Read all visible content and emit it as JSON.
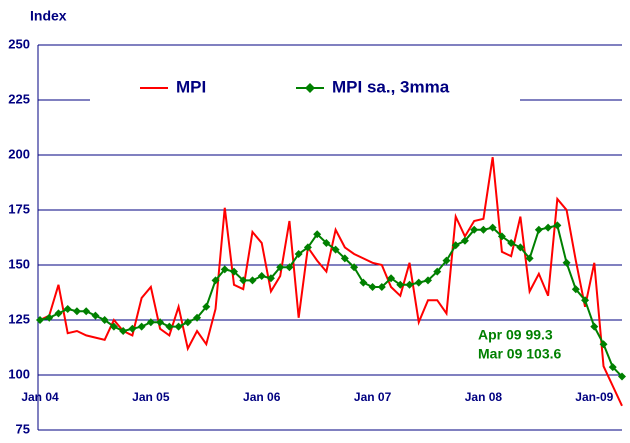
{
  "chart_data": {
    "type": "line",
    "y_label": "Index",
    "categories": [
      "Jan 04",
      null,
      null,
      null,
      null,
      null,
      null,
      null,
      null,
      null,
      null,
      null,
      "Jan 05",
      null,
      null,
      null,
      null,
      null,
      null,
      null,
      null,
      null,
      null,
      null,
      "Jan 06",
      null,
      null,
      null,
      null,
      null,
      null,
      null,
      null,
      null,
      null,
      null,
      "Jan 07",
      null,
      null,
      null,
      null,
      null,
      null,
      null,
      null,
      null,
      null,
      null,
      "Jan 08",
      null,
      null,
      null,
      null,
      null,
      null,
      null,
      null,
      null,
      null,
      null,
      "Jan-09",
      null,
      null,
      null
    ],
    "series": [
      {
        "name": "MPI",
        "color": "#ff0000",
        "marker": false,
        "values": [
          125,
          127,
          141,
          119,
          120,
          118,
          117,
          116,
          125,
          120,
          118,
          135,
          140,
          121,
          118,
          131,
          112,
          120,
          114,
          130,
          176,
          141,
          139,
          165,
          160,
          138,
          145,
          170,
          126,
          158,
          152,
          147,
          166,
          158,
          155,
          153,
          151,
          150,
          140,
          136,
          151,
          124,
          134,
          134,
          128,
          172,
          163,
          170,
          171,
          199,
          156,
          154,
          172,
          138,
          146,
          136,
          180,
          175,
          152,
          131,
          151,
          104,
          95,
          86
        ]
      },
      {
        "name": "MPI sa., 3mma",
        "color": "#008000",
        "marker": true,
        "values": [
          125,
          126,
          128,
          130,
          129,
          129,
          127,
          125,
          122,
          120,
          121,
          122,
          124,
          124,
          122,
          122,
          124,
          126,
          131,
          143,
          148,
          147,
          143,
          143,
          145,
          144,
          149,
          149,
          155,
          158,
          164,
          160,
          157,
          153,
          149,
          142,
          140,
          140,
          144,
          141,
          141,
          142,
          143,
          147,
          152,
          159,
          161,
          166,
          166,
          167,
          163,
          160,
          158,
          153,
          166,
          167,
          168,
          151,
          139,
          134,
          122,
          114,
          103.6,
          99.3
        ]
      }
    ],
    "annotations": [
      "Apr 09 99.3",
      "Mar 09 103.6"
    ],
    "ylim": [
      75,
      250
    ],
    "yticks": [
      75,
      100,
      125,
      150,
      175,
      200,
      225,
      250
    ],
    "grid": true,
    "legend_position": "top"
  }
}
